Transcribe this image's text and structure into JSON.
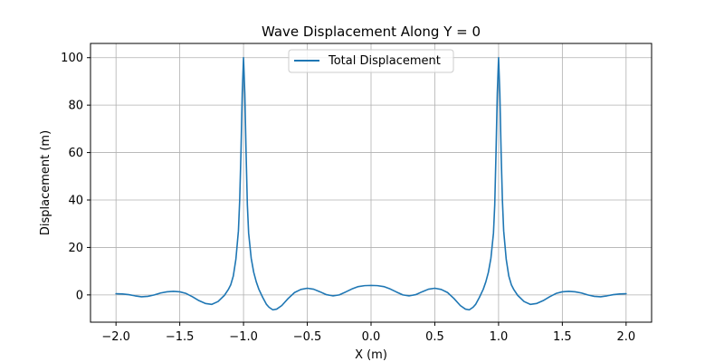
{
  "chart_data": {
    "type": "line",
    "title": "Wave Displacement Along Y = 0",
    "xlabel": "X (m)",
    "ylabel": "Displacement (m)",
    "xlim": [
      -2.2,
      2.2
    ],
    "ylim": [
      -11.5,
      106
    ],
    "x_ticks": [
      -2.0,
      -1.5,
      -1.0,
      -0.5,
      0.0,
      0.5,
      1.0,
      1.5,
      2.0
    ],
    "x_tick_labels": [
      "−2.0",
      "−1.5",
      "−1.0",
      "−0.5",
      "0.0",
      "0.5",
      "1.0",
      "1.5",
      "2.0"
    ],
    "y_ticks": [
      0,
      20,
      40,
      60,
      80,
      100
    ],
    "y_tick_labels": [
      "0",
      "20",
      "40",
      "60",
      "80",
      "100"
    ],
    "grid": true,
    "legend_position": "top-center",
    "series": [
      {
        "name": "Total Displacement",
        "color": "#1f77b4",
        "x": [
          -2.0,
          -1.95,
          -1.9,
          -1.85,
          -1.8,
          -1.75,
          -1.7,
          -1.65,
          -1.6,
          -1.55,
          -1.5,
          -1.45,
          -1.4,
          -1.35,
          -1.3,
          -1.25,
          -1.2,
          -1.15,
          -1.12,
          -1.1,
          -1.08,
          -1.06,
          -1.04,
          -1.03,
          -1.02,
          -1.01,
          -1.0,
          -0.99,
          -0.98,
          -0.97,
          -0.96,
          -0.94,
          -0.92,
          -0.9,
          -0.88,
          -0.85,
          -0.82,
          -0.8,
          -0.77,
          -0.74,
          -0.7,
          -0.65,
          -0.6,
          -0.55,
          -0.5,
          -0.45,
          -0.4,
          -0.35,
          -0.3,
          -0.25,
          -0.2,
          -0.15,
          -0.1,
          -0.05,
          0.0,
          0.05,
          0.1,
          0.15,
          0.2,
          0.25,
          0.3,
          0.35,
          0.4,
          0.45,
          0.5,
          0.55,
          0.6,
          0.65,
          0.7,
          0.74,
          0.77,
          0.8,
          0.82,
          0.85,
          0.88,
          0.9,
          0.92,
          0.94,
          0.96,
          0.97,
          0.98,
          0.99,
          1.0,
          1.01,
          1.02,
          1.03,
          1.04,
          1.06,
          1.08,
          1.1,
          1.12,
          1.15,
          1.2,
          1.25,
          1.3,
          1.35,
          1.4,
          1.45,
          1.5,
          1.55,
          1.6,
          1.65,
          1.7,
          1.75,
          1.8,
          1.85,
          1.9,
          1.95,
          2.0
        ],
        "y": [
          0.5,
          0.4,
          0.1,
          -0.4,
          -0.8,
          -0.6,
          0.0,
          0.8,
          1.3,
          1.5,
          1.3,
          0.6,
          -0.8,
          -2.4,
          -3.6,
          -4.0,
          -2.8,
          -0.2,
          2.2,
          4.3,
          8.0,
          15.0,
          27.0,
          40.0,
          60.0,
          85.0,
          100.0,
          85.0,
          60.0,
          38.0,
          26.0,
          15.5,
          9.5,
          5.5,
          2.4,
          -1.0,
          -4.0,
          -5.2,
          -6.3,
          -6.0,
          -4.5,
          -1.5,
          1.0,
          2.3,
          2.8,
          2.4,
          1.3,
          0.1,
          -0.4,
          0.0,
          1.2,
          2.5,
          3.5,
          3.9,
          4.0,
          3.9,
          3.5,
          2.5,
          1.2,
          0.0,
          -0.4,
          0.1,
          1.3,
          2.4,
          2.8,
          2.3,
          1.0,
          -1.5,
          -4.5,
          -6.0,
          -6.3,
          -5.2,
          -4.0,
          -1.0,
          2.4,
          5.5,
          9.5,
          15.5,
          26.0,
          38.0,
          60.0,
          85.0,
          100.0,
          85.0,
          60.0,
          40.0,
          27.0,
          15.0,
          8.0,
          4.3,
          2.2,
          -0.2,
          -2.8,
          -4.0,
          -3.6,
          -2.4,
          -0.8,
          0.6,
          1.3,
          1.5,
          1.3,
          0.8,
          0.0,
          -0.6,
          -0.8,
          -0.4,
          0.1,
          0.4,
          0.5
        ]
      }
    ]
  }
}
